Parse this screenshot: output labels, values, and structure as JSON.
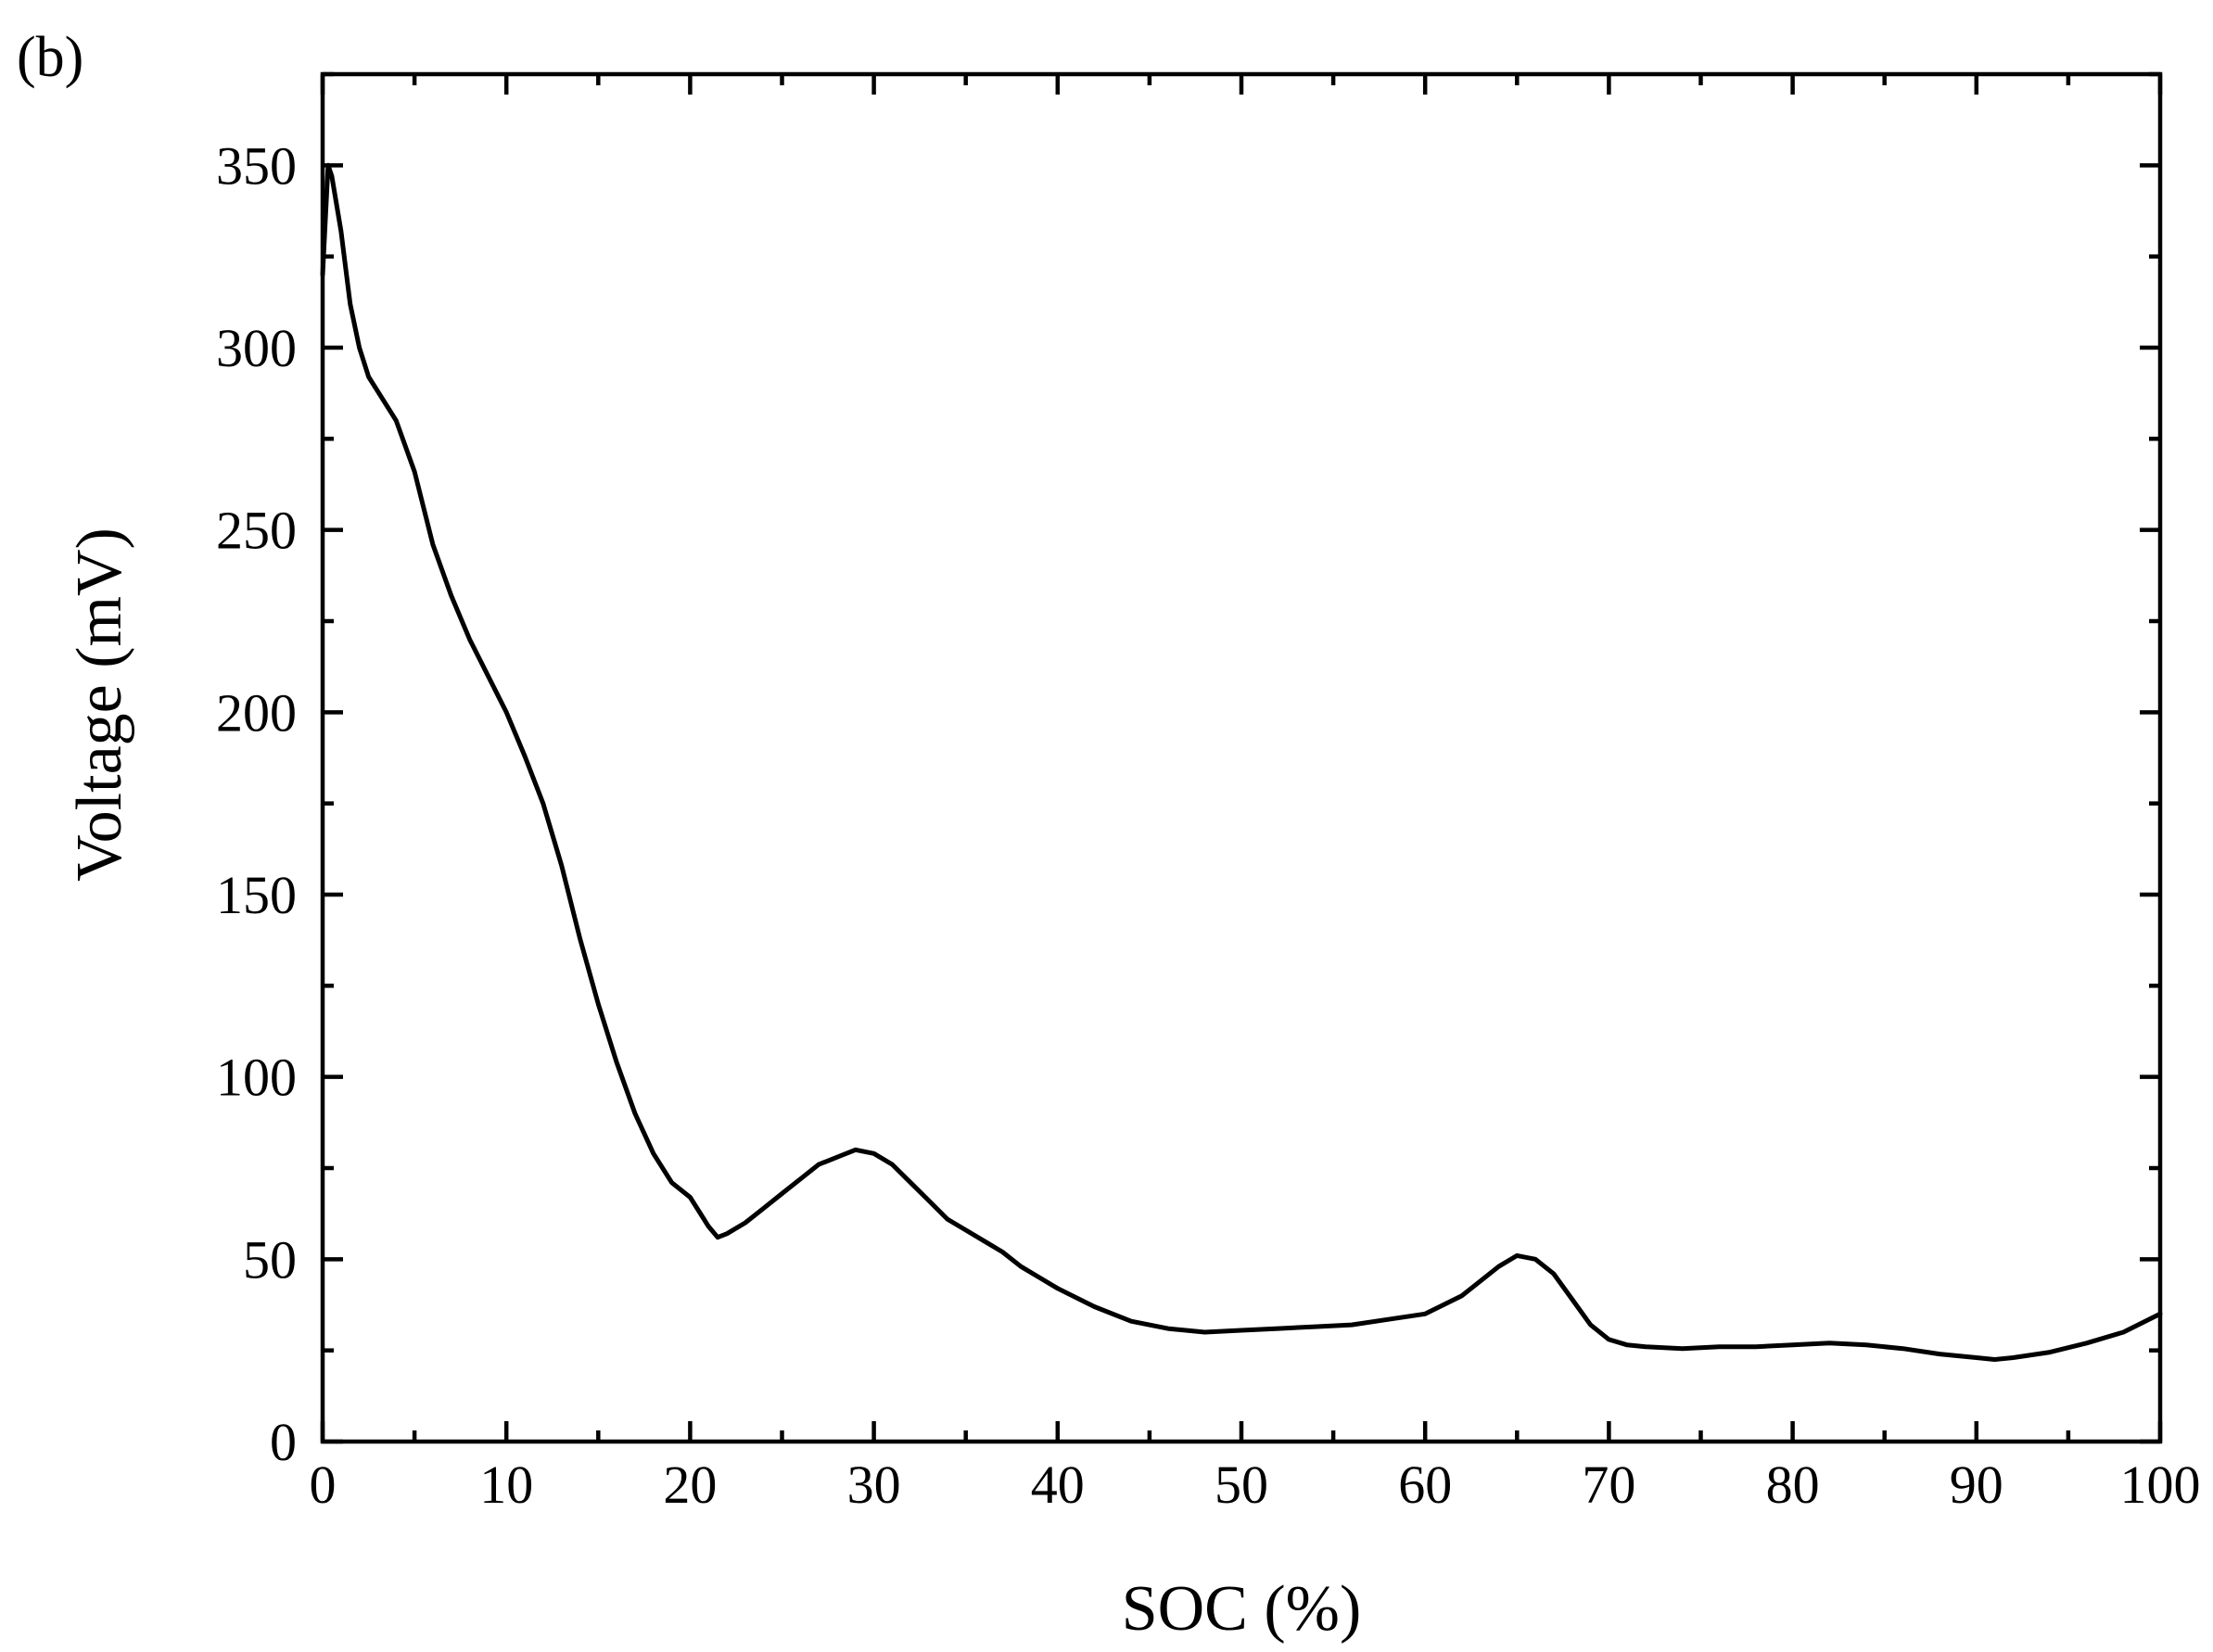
{
  "panel_label": "(b)",
  "chart_data": {
    "type": "line",
    "title": "",
    "xlabel": "SOC (%)",
    "ylabel": "Voltage (mV)",
    "xlim": [
      0,
      100
    ],
    "ylim": [
      0,
      375
    ],
    "x_ticks": [
      0,
      10,
      20,
      30,
      40,
      50,
      60,
      70,
      80,
      90,
      100
    ],
    "y_ticks": [
      0,
      50,
      100,
      150,
      200,
      250,
      300,
      350
    ],
    "x_minor_step": 5,
    "y_minor_step": 25,
    "grid": false,
    "legend": "none",
    "series": [
      {
        "color": "#000000",
        "x": [
          0,
          0.3,
          0.5,
          1,
          1.5,
          2,
          2.5,
          3,
          4,
          5,
          6,
          7,
          8,
          9,
          10,
          11,
          12,
          13,
          14,
          15,
          16,
          17,
          18,
          19,
          20,
          21,
          21.5,
          22,
          23,
          24,
          25,
          26,
          27,
          28,
          29,
          30,
          31,
          32,
          33,
          34,
          35,
          36,
          37,
          38,
          39,
          40,
          42,
          44,
          46,
          48,
          50,
          52,
          54,
          56,
          58,
          60,
          61,
          62,
          63,
          64,
          65,
          66,
          67,
          68,
          69,
          70,
          71,
          72,
          74,
          76,
          78,
          80,
          82,
          84,
          86,
          88,
          90,
          91,
          92,
          94,
          96,
          98,
          100
        ],
        "y": [
          320,
          350,
          347,
          332,
          312,
          300,
          292,
          288,
          280,
          266,
          246,
          232,
          220,
          210,
          200,
          188,
          175,
          158,
          138,
          120,
          104,
          90,
          79,
          71,
          67,
          59,
          56,
          57,
          60,
          64,
          68,
          72,
          76,
          78,
          80,
          79,
          76,
          71,
          66,
          61,
          58,
          55,
          52,
          48,
          45,
          42,
          37,
          33,
          31,
          30,
          30.5,
          31,
          31.5,
          32,
          33.5,
          35,
          37.5,
          40,
          44,
          48,
          51,
          50,
          46,
          39,
          32,
          28,
          26.5,
          26,
          25.5,
          26,
          26,
          26.5,
          27,
          26.5,
          25.5,
          24,
          23,
          22.5,
          23,
          24.5,
          27,
          30,
          35
        ]
      }
    ]
  }
}
